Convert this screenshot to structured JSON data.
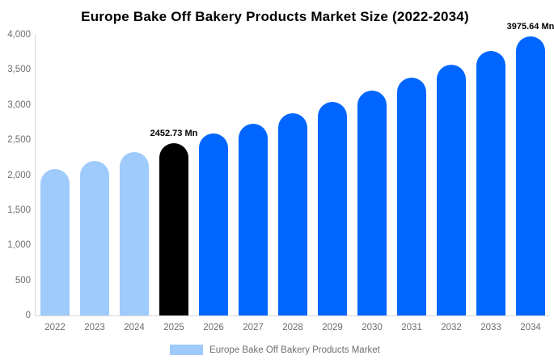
{
  "title": "Europe Bake Off Bakery Products Market Size (2022-2034)",
  "chart_data": {
    "type": "bar",
    "title": "Europe Bake Off Bakery Products Market Size (2022-2034)",
    "categories": [
      "2022",
      "2023",
      "2024",
      "2025",
      "2026",
      "2027",
      "2028",
      "2029",
      "2030",
      "2031",
      "2032",
      "2033",
      "2034"
    ],
    "values": [
      2088,
      2203,
      2325,
      2452.73,
      2588,
      2731,
      2881,
      3040,
      3208,
      3384,
      3571,
      3768,
      3975.64
    ],
    "unit": "Mn",
    "point_colors": [
      "#9FCAFC",
      "#9FCAFC",
      "#9FCAFC",
      "#000000",
      "#0066FF",
      "#0066FF",
      "#0066FF",
      "#0066FF",
      "#0066FF",
      "#0066FF",
      "#0066FF",
      "#0066FF",
      "#0066FF"
    ],
    "data_labels": [
      {
        "category": "2025",
        "text": "2452.73 Mn"
      },
      {
        "category": "2034",
        "text": "3975.64 Mn"
      }
    ],
    "ylim": [
      0,
      4000
    ],
    "ytick_interval": 500,
    "yticks": [
      {
        "value": 4000,
        "label": "4,000"
      },
      {
        "value": 3500,
        "label": "3,500"
      },
      {
        "value": 3000,
        "label": "3,000"
      },
      {
        "value": 2500,
        "label": "2,500"
      },
      {
        "value": 2000,
        "label": "2,000"
      },
      {
        "value": 1500,
        "label": "1,500"
      },
      {
        "value": 1000,
        "label": "1,000"
      },
      {
        "value": 500,
        "label": "500"
      },
      {
        "value": 0,
        "label": "0"
      }
    ],
    "grid": false,
    "legend": {
      "position": "bottom",
      "items": [
        {
          "label": "Europe Bake Off Bakery Products Market",
          "swatch_color": "#9FCAFC"
        }
      ]
    }
  },
  "colors": {
    "background": "#FFFFFF",
    "title_text": "#000000",
    "axis_line": "#D8D8D8",
    "tick_text": "#6E6E6E",
    "data_label_text": "#000000",
    "historical_bar": "#9FCAFC",
    "base_year_bar": "#000000",
    "forecast_bar": "#0066FF"
  }
}
